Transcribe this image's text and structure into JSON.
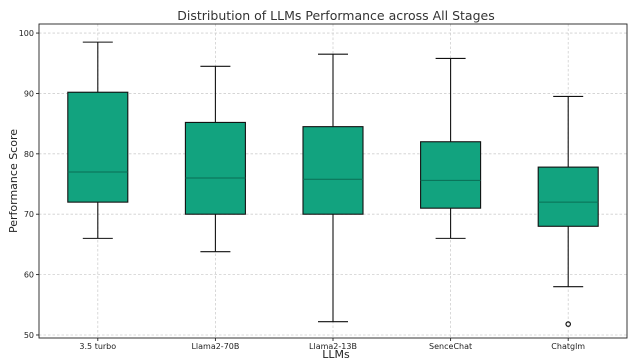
{
  "chart_data": {
    "type": "box",
    "title": "Distribution of LLMs Performance across All Stages",
    "xlabel": "LLMs",
    "ylabel": "Performance Score",
    "ylim": [
      49.5,
      101.5
    ],
    "yticks": [
      50,
      60,
      70,
      80,
      90,
      100
    ],
    "grid": true,
    "categories": [
      "3.5 turbo",
      "Llama2-70B",
      "Llama2-13B",
      "SenceChat",
      "Chatglm"
    ],
    "boxes": [
      {
        "name": "3.5 turbo",
        "whisker_low": 66.0,
        "q1": 72.0,
        "median": 77.0,
        "q3": 90.2,
        "whisker_high": 98.5,
        "outliers": []
      },
      {
        "name": "Llama2-70B",
        "whisker_low": 63.8,
        "q1": 70.0,
        "median": 76.0,
        "q3": 85.2,
        "whisker_high": 94.5,
        "outliers": []
      },
      {
        "name": "Llama2-13B",
        "whisker_low": 52.2,
        "q1": 70.0,
        "median": 75.8,
        "q3": 84.5,
        "whisker_high": 96.5,
        "outliers": []
      },
      {
        "name": "SenceChat",
        "whisker_low": 66.0,
        "q1": 71.0,
        "median": 75.6,
        "q3": 82.0,
        "whisker_high": 95.8,
        "outliers": []
      },
      {
        "name": "Chatglm",
        "whisker_low": 58.0,
        "q1": 68.0,
        "median": 72.0,
        "q3": 77.8,
        "whisker_high": 89.5,
        "outliers": [
          51.8
        ]
      }
    ],
    "colors": {
      "box_fill": "#12a37f",
      "median_line": "#0a6e55"
    }
  }
}
